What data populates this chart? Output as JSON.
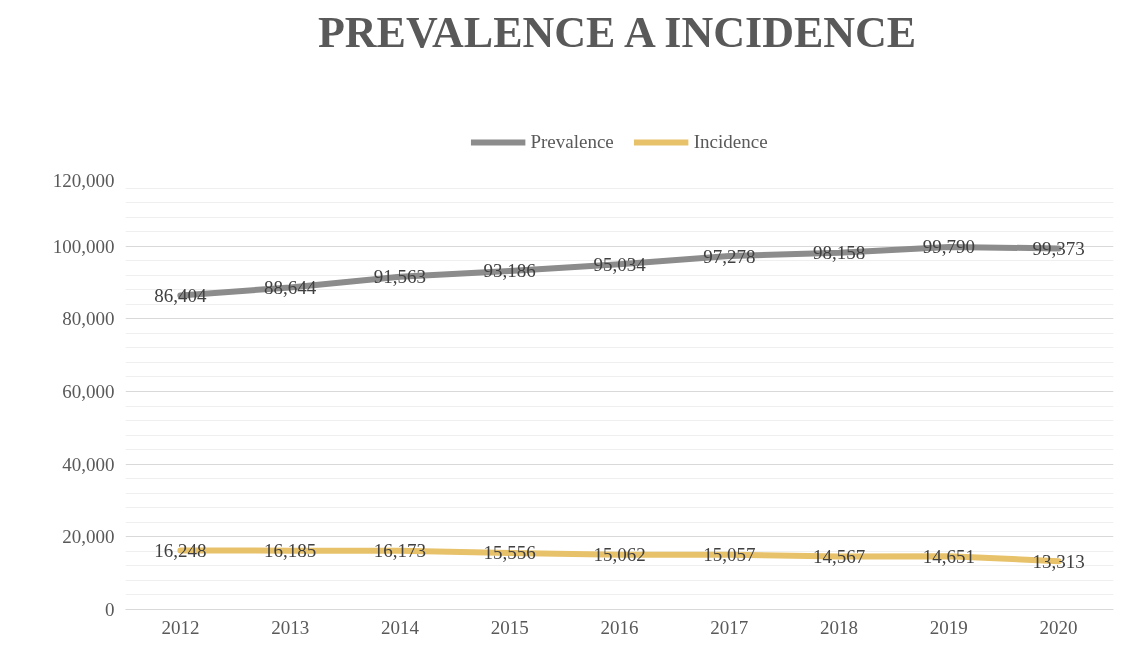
{
  "chart_data": {
    "type": "line",
    "title": "PREVALENCE A INCIDENCE",
    "categories": [
      "2012",
      "2013",
      "2014",
      "2015",
      "2016",
      "2017",
      "2018",
      "2019",
      "2020"
    ],
    "series": [
      {
        "name": "Prevalence",
        "color": "#8c8c8c",
        "values": [
          86404,
          88644,
          91563,
          93186,
          95034,
          97278,
          98158,
          99790,
          99373
        ],
        "value_labels": [
          "86,404",
          "88,644",
          "91,563",
          "93,186",
          "95,034",
          "97,278",
          "98,158",
          "99,790",
          "99,373"
        ]
      },
      {
        "name": "Incidence",
        "color": "#e8c26a",
        "values": [
          16248,
          16185,
          16173,
          15556,
          15062,
          15057,
          14567,
          14651,
          13313
        ],
        "value_labels": [
          "16,248",
          "16,185",
          "16,173",
          "15,556",
          "15,062",
          "15,057",
          "14,567",
          "14,651",
          "13,313"
        ]
      }
    ],
    "ylim": [
      0,
      120000
    ],
    "yticks": [
      {
        "value": 0,
        "label": "0"
      },
      {
        "value": 20000,
        "label": "20,000"
      },
      {
        "value": 40000,
        "label": "40,000"
      },
      {
        "value": 60000,
        "label": "60,000"
      },
      {
        "value": 80000,
        "label": "80,000"
      },
      {
        "value": 100000,
        "label": "100,000"
      },
      {
        "value": 120000,
        "label": "120,000"
      }
    ],
    "data_labels": true,
    "grid": "y",
    "legend": "top",
    "marker": "none",
    "line_style": "solid"
  }
}
